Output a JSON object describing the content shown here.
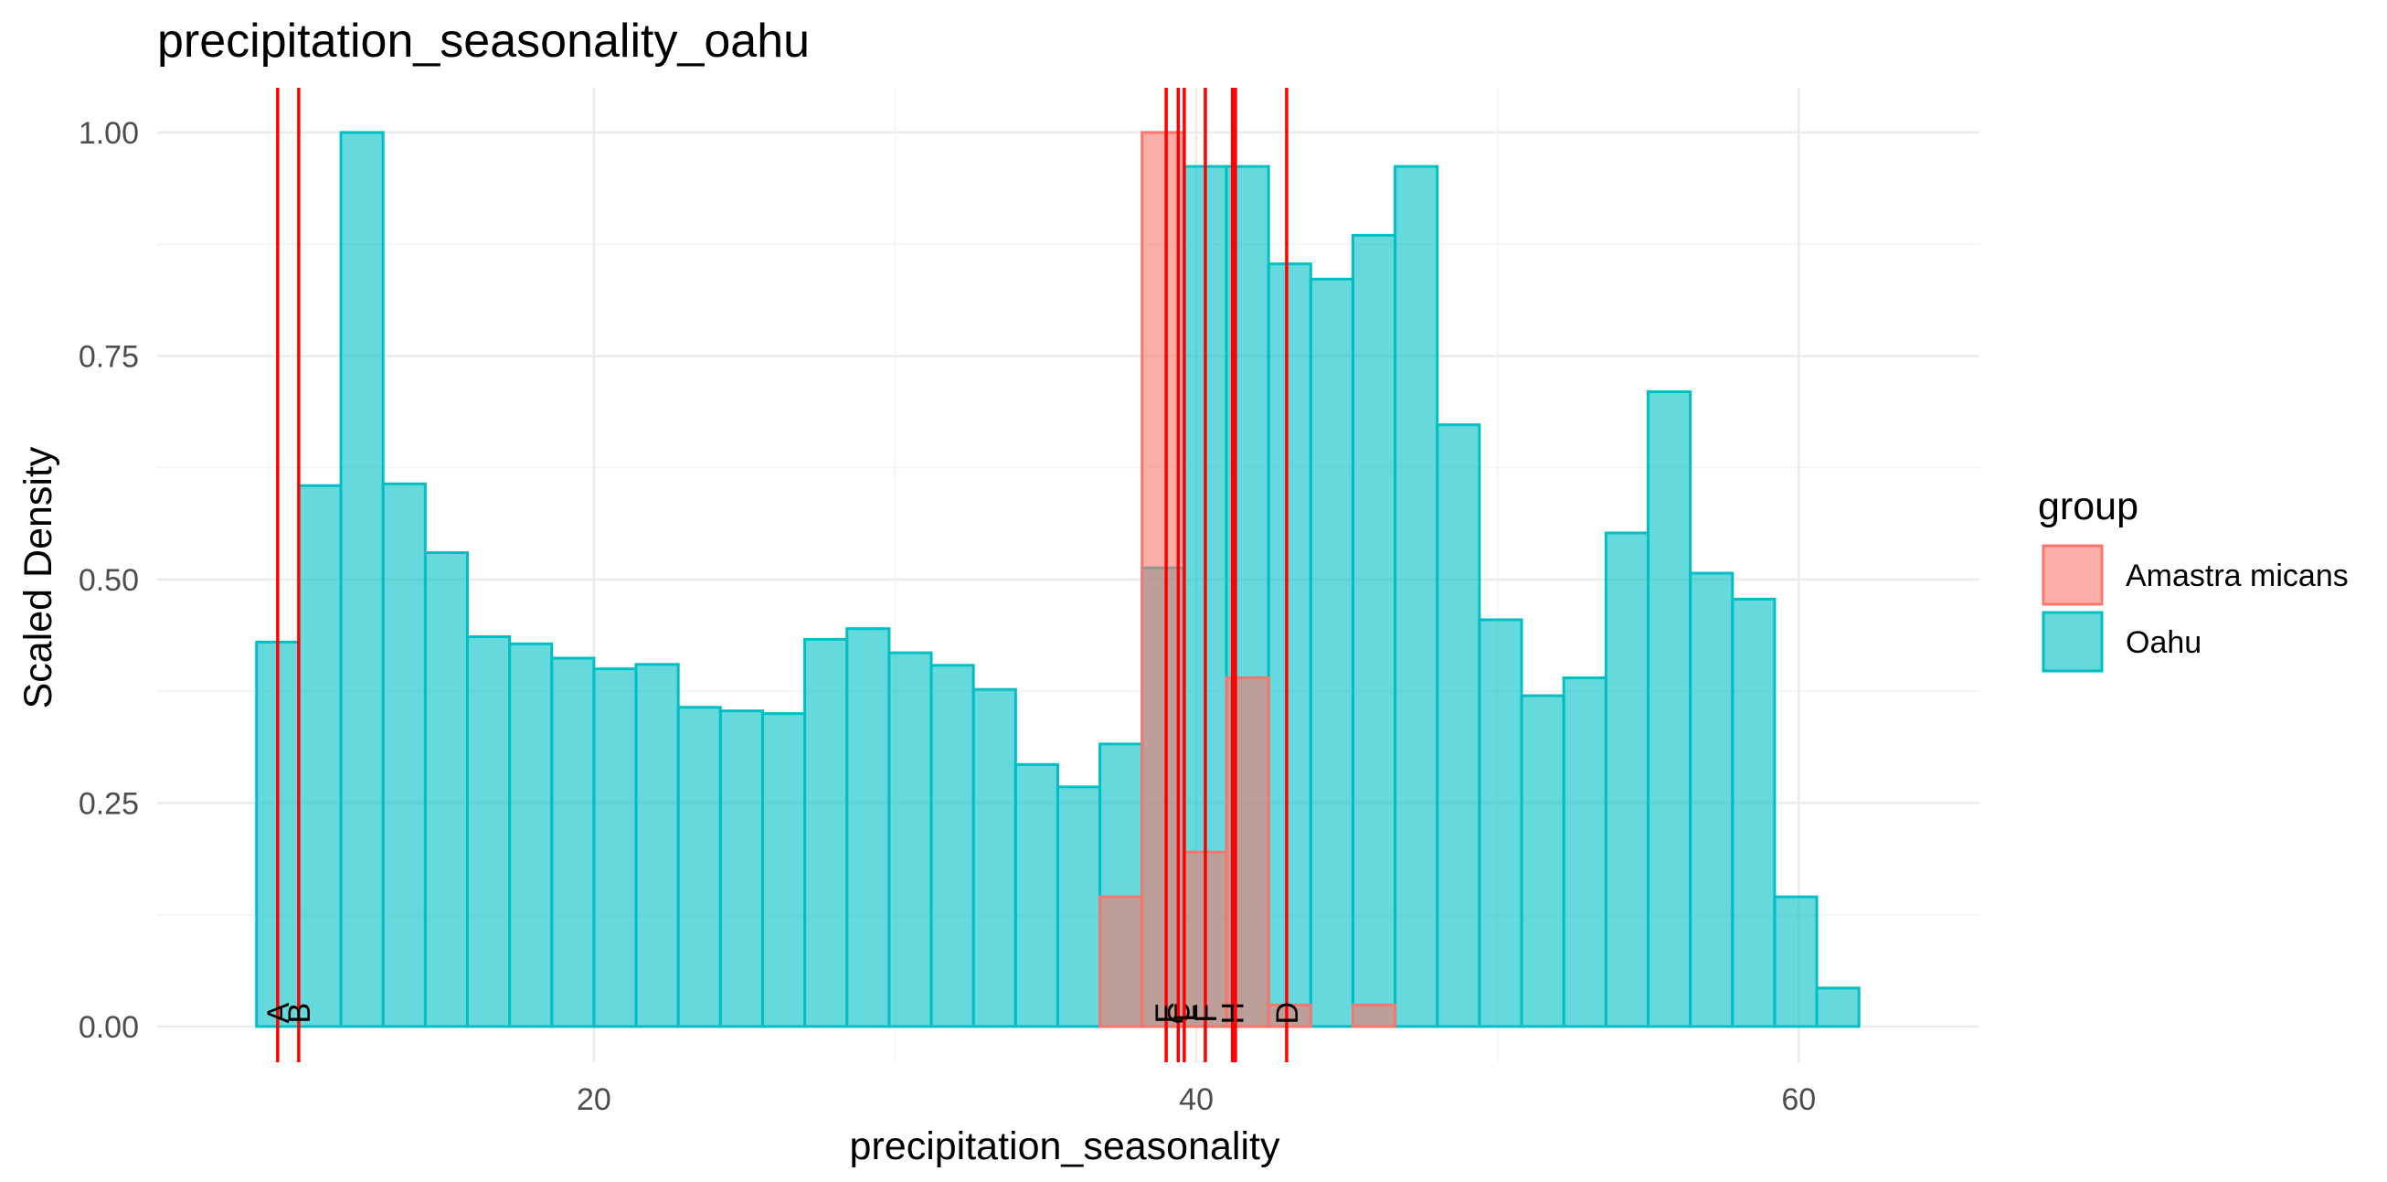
{
  "chart_data": {
    "type": "bar",
    "title": "precipitation_seasonality_oahu",
    "xlabel": "precipitation_seasonality",
    "ylabel": "Scaled Density",
    "xlim": [
      5.5,
      66.0
    ],
    "ylim": [
      -0.04,
      1.05
    ],
    "x_ticks": [
      20,
      40,
      60
    ],
    "x_tick_labels": [
      "20",
      "40",
      "60"
    ],
    "y_ticks": [
      0.0,
      0.25,
      0.5,
      0.75,
      1.0
    ],
    "y_tick_labels": [
      "0.00",
      "0.25",
      "0.50",
      "0.75",
      "1.00"
    ],
    "grid": true,
    "legend": {
      "title": "group",
      "position": "right",
      "entries": [
        {
          "label": "Amastra micans",
          "fill": "#F8766D",
          "stroke": "#F8766D"
        },
        {
          "label": "Oahu",
          "fill": "#00BFC4",
          "stroke": "#00BFC4"
        }
      ]
    },
    "bin_width": 1.4,
    "series": [
      {
        "name": "Oahu",
        "color": "#00BFC4",
        "bins": [
          {
            "x": 9.5,
            "y": 0.43
          },
          {
            "x": 10.9,
            "y": 0.605
          },
          {
            "x": 12.3,
            "y": 1.0
          },
          {
            "x": 13.7,
            "y": 0.607
          },
          {
            "x": 15.1,
            "y": 0.53
          },
          {
            "x": 16.5,
            "y": 0.436
          },
          {
            "x": 17.9,
            "y": 0.428
          },
          {
            "x": 19.3,
            "y": 0.412
          },
          {
            "x": 20.7,
            "y": 0.4
          },
          {
            "x": 22.1,
            "y": 0.405
          },
          {
            "x": 23.5,
            "y": 0.357
          },
          {
            "x": 24.9,
            "y": 0.353
          },
          {
            "x": 26.3,
            "y": 0.35
          },
          {
            "x": 27.7,
            "y": 0.433
          },
          {
            "x": 29.1,
            "y": 0.445
          },
          {
            "x": 30.5,
            "y": 0.418
          },
          {
            "x": 31.9,
            "y": 0.404
          },
          {
            "x": 33.3,
            "y": 0.377
          },
          {
            "x": 34.7,
            "y": 0.293
          },
          {
            "x": 36.1,
            "y": 0.268
          },
          {
            "x": 37.5,
            "y": 0.316
          },
          {
            "x": 38.9,
            "y": 0.513
          },
          {
            "x": 40.3,
            "y": 0.962
          },
          {
            "x": 41.7,
            "y": 0.962
          },
          {
            "x": 43.1,
            "y": 0.853
          },
          {
            "x": 44.5,
            "y": 0.836
          },
          {
            "x": 45.9,
            "y": 0.885
          },
          {
            "x": 47.3,
            "y": 0.962
          },
          {
            "x": 48.7,
            "y": 0.673
          },
          {
            "x": 50.1,
            "y": 0.455
          },
          {
            "x": 51.5,
            "y": 0.37
          },
          {
            "x": 52.9,
            "y": 0.39
          },
          {
            "x": 54.3,
            "y": 0.552
          },
          {
            "x": 55.7,
            "y": 0.71
          },
          {
            "x": 57.1,
            "y": 0.507
          },
          {
            "x": 58.5,
            "y": 0.478
          },
          {
            "x": 59.9,
            "y": 0.145
          },
          {
            "x": 61.3,
            "y": 0.043
          }
        ]
      },
      {
        "name": "Amastra micans",
        "color": "#F8766D",
        "bins": [
          {
            "x": 37.5,
            "y": 0.145
          },
          {
            "x": 38.9,
            "y": 1.0
          },
          {
            "x": 40.3,
            "y": 0.195
          },
          {
            "x": 41.7,
            "y": 0.39
          },
          {
            "x": 43.1,
            "y": 0.024
          },
          {
            "x": 45.9,
            "y": 0.024
          }
        ]
      }
    ],
    "vlines": {
      "color": "#FF0000",
      "lines": [
        {
          "x": 9.5,
          "label": "A"
        },
        {
          "x": 10.2,
          "label": "B"
        },
        {
          "x": 39.0,
          "label": "E"
        },
        {
          "x": 39.4,
          "label": "C"
        },
        {
          "x": 39.6,
          "label": "L"
        },
        {
          "x": 40.3,
          "label": "F"
        },
        {
          "x": 41.2,
          "label": "H"
        },
        {
          "x": 41.3,
          "label": ""
        },
        {
          "x": 43.0,
          "label": "D"
        }
      ]
    }
  }
}
